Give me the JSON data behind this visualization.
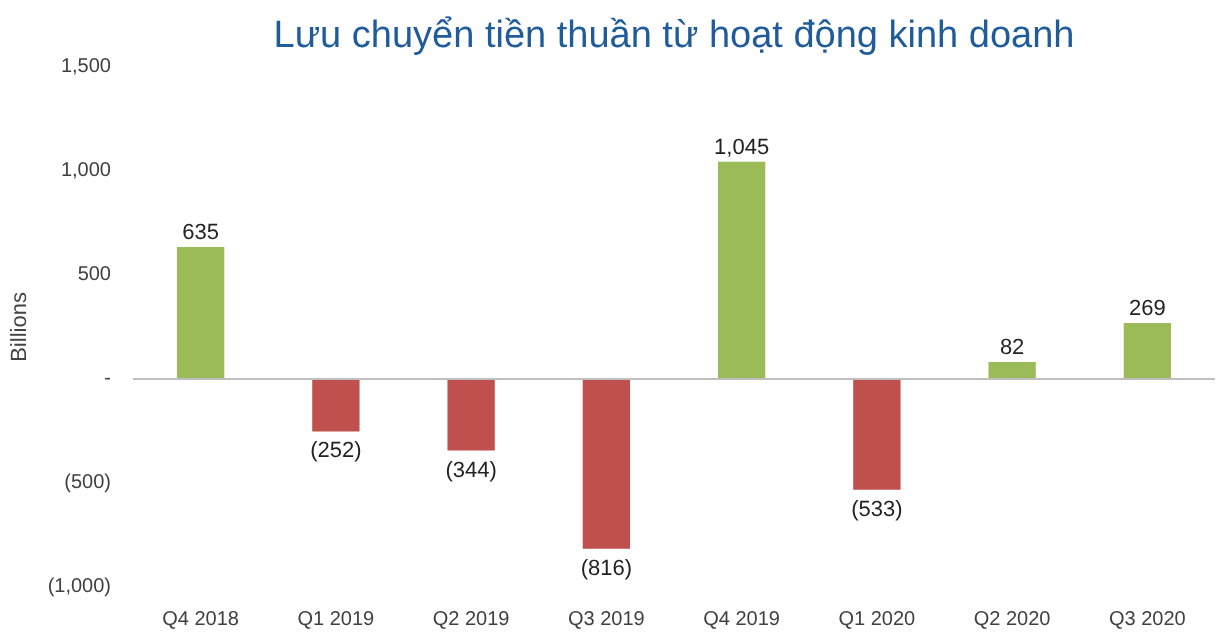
{
  "chart_data": {
    "type": "bar",
    "title": "Lưu chuyển tiền thuần từ hoạt động kinh doanh",
    "ylabel": "Billions",
    "categories": [
      "Q4 2018",
      "Q1 2019",
      "Q2 2019",
      "Q3 2019",
      "Q4 2019",
      "Q1 2020",
      "Q2 2020",
      "Q3 2020"
    ],
    "values": [
      635,
      -252,
      -344,
      -816,
      1045,
      -533,
      82,
      269
    ],
    "colors": [
      "#9bbb59",
      "#c0504d",
      "#c0504d",
      "#c0504d",
      "#9bbb59",
      "#c0504d",
      "#9bbb59",
      "#9bbb59"
    ],
    "value_labels": [
      "635",
      "(252)",
      "(344)",
      "(816)",
      "1,045",
      "(533)",
      "82",
      "269"
    ],
    "ylim": [
      -1000,
      1500
    ],
    "yticks": [
      {
        "value": -1000,
        "label": "(1,000)"
      },
      {
        "value": -500,
        "label": "(500)"
      },
      {
        "value": 0,
        "label": "-"
      },
      500,
      {
        "value": 1000,
        "label": "1,000"
      },
      {
        "value": 1500,
        "label": "1,500"
      }
    ]
  }
}
